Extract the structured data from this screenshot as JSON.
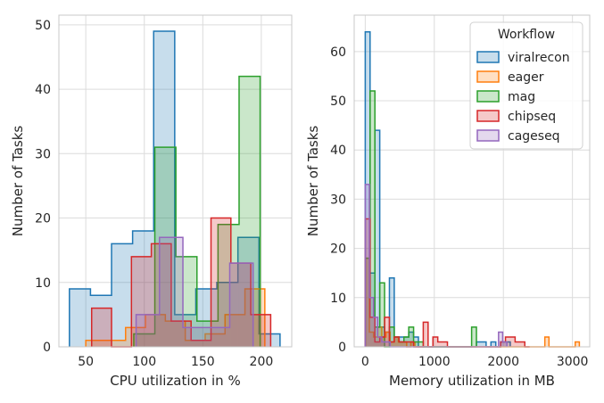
{
  "colors": {
    "viralrecon": "#1f77b4",
    "eager": "#ff7f0e",
    "mag": "#2ca02c",
    "chipseq": "#d62728",
    "cageseq": "#9467bd"
  },
  "legend": {
    "title": "Workflow",
    "entries": [
      "viralrecon",
      "eager",
      "mag",
      "chipseq",
      "cageseq"
    ]
  },
  "chart_data": [
    {
      "type": "histogram-step",
      "xlabel": "CPU utilization in %",
      "ylabel": "Number of Tasks",
      "xlim": [
        27,
        226
      ],
      "ylim": [
        0,
        51.5
      ],
      "xticks": [
        50,
        100,
        150,
        200
      ],
      "yticks": [
        0,
        10,
        20,
        30,
        40,
        50
      ],
      "grid": true,
      "series": [
        {
          "name": "viralrecon",
          "edges": [
            36,
            54,
            72,
            90,
            108,
            126,
            144,
            162,
            180,
            198,
            216
          ],
          "values": [
            9,
            8,
            16,
            18,
            49,
            5,
            9,
            10,
            17,
            2
          ]
        },
        {
          "name": "eager",
          "edges": [
            50,
            67,
            84,
            101,
            118,
            135,
            152,
            169,
            186,
            203
          ],
          "values": [
            1,
            1,
            3,
            5,
            4,
            1,
            2,
            5,
            9
          ]
        },
        {
          "name": "mag",
          "edges": [
            91,
            109,
            127,
            145,
            163,
            181,
            199
          ],
          "values": [
            2,
            31,
            14,
            4,
            19,
            42
          ]
        },
        {
          "name": "chipseq",
          "edges": [
            55,
            72,
            89,
            106,
            123,
            140,
            157,
            174,
            191,
            208
          ],
          "values": [
            6,
            0,
            14,
            16,
            4,
            1,
            20,
            13,
            5
          ]
        },
        {
          "name": "cageseq",
          "edges": [
            93,
            113,
            133,
            153,
            173,
            193
          ],
          "values": [
            5,
            17,
            3,
            3,
            13
          ]
        }
      ]
    },
    {
      "type": "histogram-step",
      "xlabel": "Memory utilization in MB",
      "ylabel": "Number of Tasks",
      "xlim": [
        -160,
        3250
      ],
      "ylim": [
        0,
        67.4
      ],
      "xticks": [
        0,
        1000,
        2000,
        3000
      ],
      "yticks": [
        0,
        10,
        20,
        30,
        40,
        50,
        60
      ],
      "grid": true,
      "legend_position": "top-right",
      "series": [
        {
          "name": "viralrecon",
          "edges": [
            0,
            70,
            140,
            210,
            280,
            350,
            420,
            490,
            560,
            630,
            700,
            770,
            840,
            910,
            980,
            1050,
            1120,
            1190,
            1260,
            1330,
            1400,
            1470,
            1540,
            1610,
            1680,
            1750,
            1820,
            1890,
            1960,
            2030,
            2100
          ],
          "values": [
            64,
            15,
            44,
            4,
            3,
            14,
            2,
            2,
            2,
            3,
            2,
            0,
            0,
            0,
            0,
            0,
            0,
            0,
            0,
            0,
            0,
            0,
            0,
            1,
            1,
            0,
            1,
            0,
            1,
            1
          ]
        },
        {
          "name": "eager",
          "edges": [
            0,
            60,
            120,
            180,
            240,
            300,
            360,
            420,
            480,
            540,
            600,
            660,
            720,
            780,
            2600,
            2660,
            2720,
            3040,
            3100
          ],
          "values": [
            18,
            3,
            2,
            4,
            2,
            3,
            1,
            2,
            1,
            1,
            0,
            1,
            0,
            0,
            2,
            0,
            0,
            1
          ]
        },
        {
          "name": "mag",
          "edges": [
            0,
            70,
            140,
            210,
            280,
            350,
            420,
            490,
            560,
            630,
            700,
            770,
            840,
            1540,
            1610
          ],
          "values": [
            18,
            52,
            4,
            13,
            0,
            4,
            2,
            1,
            2,
            4,
            1,
            1,
            0,
            4
          ]
        },
        {
          "name": "chipseq",
          "edges": [
            0,
            70,
            140,
            210,
            280,
            350,
            420,
            490,
            560,
            630,
            700,
            770,
            840,
            910,
            980,
            1050,
            1120,
            1190,
            1960,
            2030,
            2100,
            2170,
            2240,
            2310,
            2380
          ],
          "values": [
            26,
            6,
            1,
            2,
            6,
            1,
            2,
            1,
            1,
            1,
            0,
            0,
            5,
            0,
            2,
            1,
            1,
            0,
            1,
            2,
            2,
            1,
            1,
            0
          ]
        },
        {
          "name": "cageseq",
          "edges": [
            0,
            60,
            120,
            180,
            240,
            300,
            360,
            420,
            1930,
            1990,
            2050
          ],
          "values": [
            33,
            10,
            6,
            2,
            1,
            1,
            0,
            0,
            3,
            1
          ]
        }
      ]
    }
  ]
}
